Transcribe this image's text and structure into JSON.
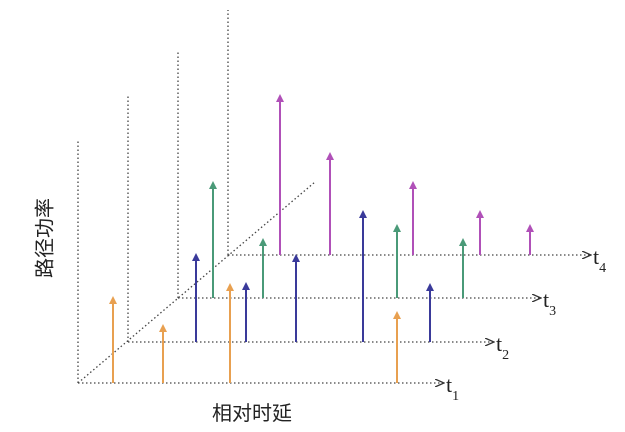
{
  "y_label": "路径功率",
  "x_label": "相对时延",
  "axes": [
    {
      "label": "t",
      "subscript": "1"
    },
    {
      "label": "t",
      "subscript": "2"
    },
    {
      "label": "t",
      "subscript": "3"
    },
    {
      "label": "t",
      "subscript": "4"
    }
  ]
}
